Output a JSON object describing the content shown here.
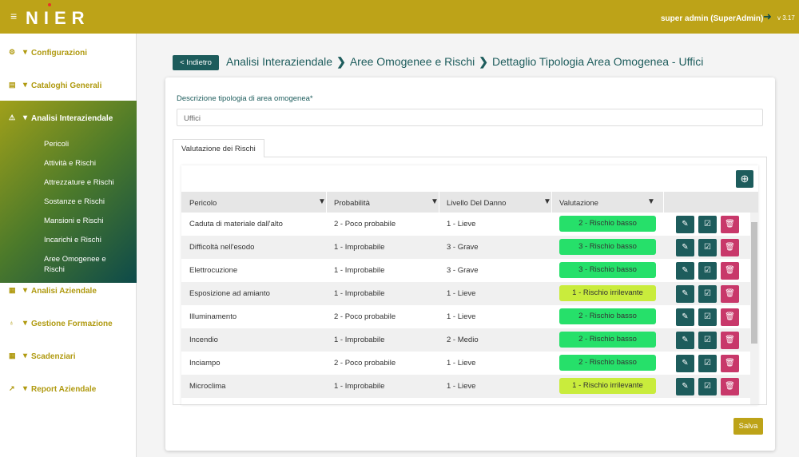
{
  "header": {
    "logo": "NIER",
    "user": "super admin (SuperAdmin)",
    "version": "v 3.17"
  },
  "sidebar": {
    "items": [
      {
        "label": "Configurazioni",
        "children": []
      },
      {
        "label": "Cataloghi Generali",
        "children": []
      },
      {
        "label": "Analisi Interaziendale",
        "active": true,
        "children": [
          "Pericoli",
          "Attività e Rischi",
          "Attrezzature e Rischi",
          "Sostanze e Rischi",
          "Mansioni e Rischi",
          "Incarichi e Rischi",
          "Aree Omogenee e Rischi"
        ]
      },
      {
        "label": "Analisi Aziendale",
        "children": []
      },
      {
        "label": "Gestione Formazione",
        "children": []
      },
      {
        "label": "Scadenziari",
        "children": []
      },
      {
        "label": "Report Aziendale",
        "children": []
      }
    ]
  },
  "page": {
    "back_button": "< Indietro",
    "breadcrumb": [
      "Analisi Interaziendale",
      "Aree Omogenee e Rischi",
      "Dettaglio Tipologia Area Omogenea - Uffici"
    ],
    "field_label": "Descrizione tipologia di area omogenea*",
    "field_value": "Uffici",
    "tab": "Valutazione dei Rischi",
    "save_button": "Salva"
  },
  "table": {
    "columns": [
      "Pericolo",
      "Probabilità",
      "Livello Del Danno",
      "Valutazione"
    ],
    "rows": [
      {
        "cells": [
          "Caduta di materiale dall'alto",
          "2 - Poco probabile",
          "1 - Lieve",
          "2 - Rischio basso"
        ],
        "badge_color": "#26e06a"
      },
      {
        "cells": [
          "Difficoltà nell'esodo",
          "1 - Improbabile",
          "3 - Grave",
          "3 - Rischio basso"
        ],
        "badge_color": "#26e06a"
      },
      {
        "cells": [
          "Elettrocuzione",
          "1 - Improbabile",
          "3 - Grave",
          "3 - Rischio basso"
        ],
        "badge_color": "#26e06a"
      },
      {
        "cells": [
          "Esposizione ad amianto",
          "1 - Improbabile",
          "1 - Lieve",
          "1 - Rischio irrilevante"
        ],
        "badge_color": "#c9ec3c"
      },
      {
        "cells": [
          "Illuminamento",
          "2 - Poco probabile",
          "1 - Lieve",
          "2 - Rischio basso"
        ],
        "badge_color": "#26e06a"
      },
      {
        "cells": [
          "Incendio",
          "1 - Improbabile",
          "2 - Medio",
          "2 - Rischio basso"
        ],
        "badge_color": "#26e06a"
      },
      {
        "cells": [
          "Inciampo",
          "2 - Poco probabile",
          "1 - Lieve",
          "2 - Rischio basso"
        ],
        "badge_color": "#26e06a"
      },
      {
        "cells": [
          "Microclima",
          "1 - Improbabile",
          "1 - Lieve",
          "1 - Rischio irrilevante"
        ],
        "badge_color": "#c9ec3c"
      }
    ]
  }
}
